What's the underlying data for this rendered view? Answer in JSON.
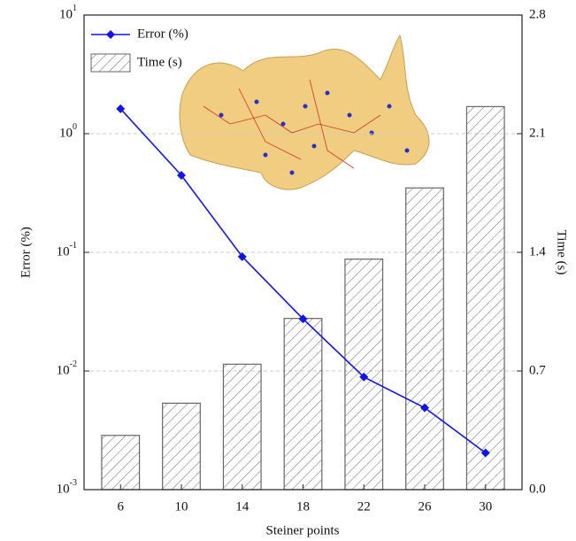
{
  "chart_data": {
    "type": "bar-line",
    "categories": [
      "6",
      "10",
      "14",
      "18",
      "22",
      "26",
      "30"
    ],
    "x_label": "Steiner points",
    "y_label": "Error (%)",
    "y2_label": "Time (s)",
    "y_scale": "log",
    "ylim": [
      0.001,
      10
    ],
    "yticks": [
      {
        "value": 0.001,
        "label": "10^-3"
      },
      {
        "value": 0.01,
        "label": "10^-2"
      },
      {
        "value": 0.1,
        "label": "10^-1"
      },
      {
        "value": 1,
        "label": "10^0"
      },
      {
        "value": 10,
        "label": "10^1"
      }
    ],
    "y2lim": [
      0,
      2.8
    ],
    "y2ticks": [
      {
        "value": 0,
        "label": "0.0"
      },
      0.7,
      1.4,
      2.1,
      2.8
    ],
    "grid": true,
    "legend": "upper left",
    "series": [
      {
        "name": "Error (%)",
        "type": "line",
        "color": "#1414e6",
        "axis": "y",
        "values": [
          1.62,
          0.446,
          0.092,
          0.0275,
          0.0089,
          0.0049,
          0.00204
        ]
      },
      {
        "name": "Time (s)",
        "type": "bar",
        "color": "#666666",
        "axis": "y2",
        "values": [
          0.32,
          0.51,
          0.74,
          1.01,
          1.36,
          1.78,
          2.26
        ]
      }
    ]
  }
}
